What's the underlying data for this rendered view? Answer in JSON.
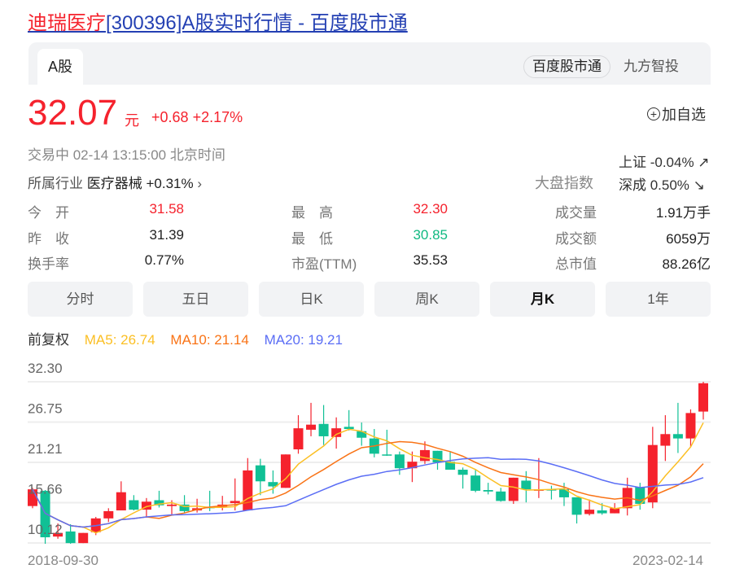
{
  "page_title": {
    "name": "迪瑞医疗",
    "rest": "[300396]A股实时行情 - 百度股市通"
  },
  "tabs": {
    "active": "A股",
    "source_pill": "百度股市通",
    "other_source": "九方智投"
  },
  "quote": {
    "price": "32.07",
    "unit": "元",
    "change": "+0.68",
    "change_pct": "+2.17%",
    "add_watchlist": "加自选",
    "status": "交易中  02-14 13:15:00  北京时间",
    "industry_label": "所属行业",
    "industry_value": "医疗器械 +0.31%",
    "market_label": "大盘指数",
    "market_items": [
      "上证 -0.04% ↗",
      "深成 0.50% ↘"
    ]
  },
  "stats": [
    {
      "label": "今　开",
      "value": "31.58",
      "color": "red"
    },
    {
      "label": "最　高",
      "value": "32.30",
      "color": "red"
    },
    {
      "label": "成交量",
      "value": "1.91万手",
      "color": ""
    },
    {
      "label": "昨　收",
      "value": "31.39",
      "color": ""
    },
    {
      "label": "最　低",
      "value": "30.85",
      "color": "green"
    },
    {
      "label": "成交额",
      "value": "6059万",
      "color": ""
    },
    {
      "label": "换手率",
      "value": "0.77%",
      "color": ""
    },
    {
      "label": "市盈(TTM)",
      "value": "35.53",
      "color": ""
    },
    {
      "label": "总市值",
      "value": "88.26亿",
      "color": ""
    }
  ],
  "periods": [
    {
      "label": "分时",
      "active": false
    },
    {
      "label": "五日",
      "active": false
    },
    {
      "label": "日K",
      "active": false
    },
    {
      "label": "周K",
      "active": false
    },
    {
      "label": "月K",
      "active": true
    },
    {
      "label": "1年",
      "active": false
    }
  ],
  "ma_legend": {
    "adjust": "前复权",
    "ma5": "MA5: 26.74",
    "ma10": "MA10: 21.14",
    "ma20": "MA20: 19.21"
  },
  "colors": {
    "up": "#f5222d",
    "down": "#10c095",
    "ma5": "#fbbf24",
    "ma10": "#f97316",
    "ma20": "#5b6ef5",
    "link": "#2440b3"
  },
  "chart_data": {
    "type": "candlestick",
    "y_ticks": [
      "32.30",
      "26.75",
      "21.21",
      "15.66",
      "10.12"
    ],
    "ylim": [
      10.12,
      32.3
    ],
    "x_start_label": "2018-09-30",
    "x_end_label": "2023-02-14",
    "grid": true,
    "candles": [
      [
        15.2,
        17.5,
        17.7,
        14.9
      ],
      [
        17.3,
        10.9,
        17.4,
        10.0
      ],
      [
        11.0,
        11.5,
        12.8,
        10.7
      ],
      [
        11.7,
        10.1,
        12.7,
        10.0
      ],
      [
        10.1,
        11.5,
        11.5,
        10.1
      ],
      [
        11.6,
        13.5,
        13.7,
        11.2
      ],
      [
        13.5,
        14.5,
        14.9,
        13.0
      ],
      [
        14.6,
        17.1,
        18.6,
        14.6
      ],
      [
        16.0,
        14.7,
        16.7,
        14.6
      ],
      [
        14.7,
        15.8,
        16.3,
        13.6
      ],
      [
        16.0,
        15.3,
        17.3,
        15.0
      ],
      [
        15.2,
        15.4,
        16.0,
        14.0
      ],
      [
        15.4,
        14.5,
        16.7,
        14.3
      ],
      [
        14.6,
        14.9,
        16.2,
        14.3
      ],
      [
        15.1,
        14.9,
        17.3,
        14.5
      ],
      [
        15.0,
        15.4,
        16.6,
        14.6
      ],
      [
        15.6,
        15.9,
        19.0,
        14.6
      ],
      [
        14.6,
        20.1,
        21.8,
        14.6
      ],
      [
        20.8,
        18.6,
        21.7,
        16.7
      ],
      [
        18.5,
        17.9,
        20.1,
        16.9
      ],
      [
        17.7,
        22.3,
        22.3,
        17.7
      ],
      [
        23.0,
        25.9,
        27.7,
        22.4
      ],
      [
        25.7,
        26.4,
        29.4,
        24.8
      ],
      [
        26.5,
        24.8,
        29.1,
        23.6
      ],
      [
        24.7,
        25.9,
        27.4,
        23.1
      ],
      [
        26.1,
        25.8,
        28.4,
        25.6
      ],
      [
        25.5,
        24.6,
        26.7,
        23.5
      ],
      [
        24.5,
        22.4,
        25.8,
        21.9
      ],
      [
        22.3,
        22.2,
        25.7,
        22.1
      ],
      [
        22.3,
        20.4,
        22.7,
        19.5
      ],
      [
        20.4,
        21.3,
        22.7,
        18.5
      ],
      [
        21.4,
        22.9,
        24.1,
        21.0
      ],
      [
        22.8,
        21.2,
        22.8,
        20.2
      ],
      [
        21.3,
        20.2,
        22.7,
        20.2
      ],
      [
        20.2,
        19.5,
        20.5,
        17.6
      ],
      [
        19.4,
        17.3,
        20.2,
        17.1
      ],
      [
        17.4,
        17.2,
        18.4,
        16.8
      ],
      [
        17.2,
        15.9,
        17.7,
        15.8
      ],
      [
        15.9,
        19.1,
        19.1,
        15.5
      ],
      [
        18.7,
        17.5,
        20.0,
        15.7
      ],
      [
        17.3,
        17.5,
        21.8,
        16.3
      ],
      [
        17.5,
        17.4,
        18.0,
        16.1
      ],
      [
        17.5,
        16.4,
        18.4,
        15.2
      ],
      [
        16.4,
        14.0,
        16.4,
        12.8
      ],
      [
        14.1,
        14.7,
        16.1,
        13.9
      ],
      [
        14.6,
        14.2,
        15.6,
        14.0
      ],
      [
        14.2,
        14.9,
        15.6,
        14.2
      ],
      [
        14.9,
        17.7,
        19.1,
        13.9
      ],
      [
        17.8,
        15.5,
        18.4,
        14.7
      ],
      [
        15.7,
        23.6,
        26.1,
        14.9
      ],
      [
        23.5,
        25.1,
        27.7,
        21.4
      ],
      [
        25.1,
        24.5,
        29.4,
        22.5
      ],
      [
        24.5,
        28.0,
        28.5,
        23.3
      ],
      [
        28.2,
        32.1,
        32.3,
        27.1
      ]
    ],
    "candle_fields": [
      "open",
      "close",
      "high",
      "low"
    ],
    "ma_series": [
      "MA5",
      "MA10",
      "MA20"
    ]
  }
}
